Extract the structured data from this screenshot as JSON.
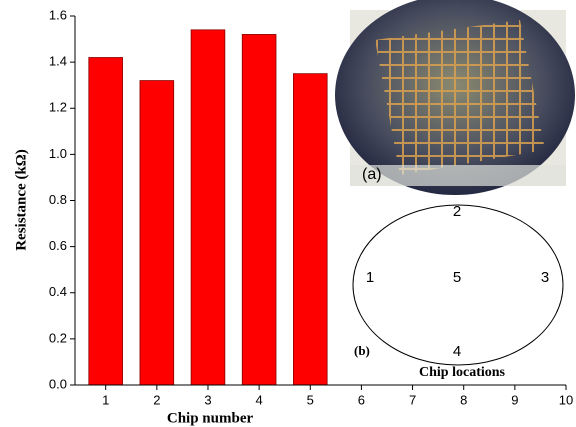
{
  "chart_data": {
    "type": "bar",
    "y_label": "Resistance (kΩ)",
    "x_label": "Chip number",
    "x": [
      1,
      2,
      3,
      4,
      5
    ],
    "values": [
      1.42,
      1.32,
      1.54,
      1.52,
      1.35
    ],
    "color": "#ff0000",
    "xlim": [
      0.4,
      10
    ],
    "xticks": [
      1,
      2,
      3,
      4,
      5,
      6,
      7,
      8,
      9,
      10
    ],
    "ylim": [
      0,
      1.6
    ],
    "yticks": [
      {
        "value": 0,
        "label": "0.0"
      },
      0.2,
      0.4,
      0.6,
      0.8,
      {
        "value": 1,
        "label": "1.0"
      },
      1.2,
      1.4,
      1.6
    ],
    "inset_a_label": "(a)",
    "inset_b_label": "(b)",
    "inset_b_title": "Chip locations",
    "chip_location_labels": [
      "2",
      "1",
      "5",
      "3",
      "4"
    ]
  }
}
